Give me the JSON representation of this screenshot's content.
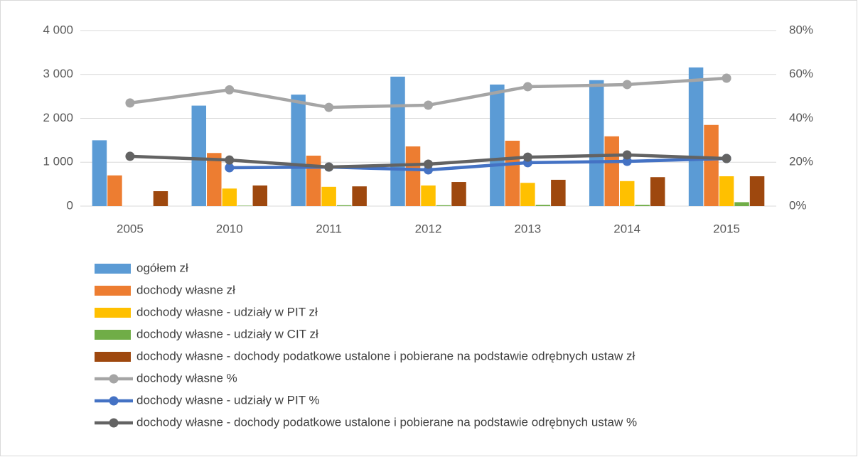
{
  "chart_data": {
    "type": "bar",
    "categories": [
      "2005",
      "2010",
      "2011",
      "2012",
      "2013",
      "2014",
      "2015"
    ],
    "series": [
      {
        "name": "ogółem zł",
        "type": "bar",
        "color": "#5b9bd5",
        "values": [
          1500,
          2290,
          2540,
          2950,
          2770,
          2870,
          3160
        ]
      },
      {
        "name": "dochody własne zł",
        "type": "bar",
        "color": "#ed7d31",
        "values": [
          700,
          1210,
          1150,
          1360,
          1490,
          1590,
          1850
        ]
      },
      {
        "name": "dochody własne - udziały w PIT zł",
        "type": "bar",
        "color": "#ffc000",
        "values": [
          null,
          400,
          440,
          470,
          530,
          570,
          680
        ]
      },
      {
        "name": "dochody własne - udziały w CIT zł",
        "type": "bar",
        "color": "#70ad47",
        "values": [
          null,
          10,
          20,
          20,
          30,
          30,
          90
        ]
      },
      {
        "name": "dochody własne - dochody podatkowe ustalone i pobierane na podstawie odrębnych ustaw zł",
        "type": "bar",
        "color": "#9e480e",
        "values": [
          340,
          470,
          450,
          550,
          600,
          660,
          680
        ]
      },
      {
        "name": "dochody własne %",
        "type": "line",
        "axis": "y2",
        "color": "#a5a5a5",
        "values": [
          47,
          53,
          45,
          46,
          54.4,
          55.4,
          58.3
        ]
      },
      {
        "name": "dochody własne - udziały w PIT %",
        "type": "line",
        "axis": "y2",
        "color": "#4472c4",
        "values": [
          null,
          17.5,
          17.8,
          16.5,
          19.8,
          20.4,
          21.7
        ]
      },
      {
        "name": "dochody własne - dochody podatkowe ustalone i pobierane na podstawie odrębnych ustaw %",
        "type": "line",
        "axis": "y2",
        "color": "#636363",
        "values": [
          22.7,
          21,
          17.8,
          19.1,
          22.3,
          23.3,
          21.7
        ]
      }
    ],
    "ylim": [
      0,
      4000
    ],
    "yticks": [
      0,
      {
        "value": 1000,
        "label": "1 000"
      },
      {
        "value": 2000,
        "label": "2 000"
      },
      {
        "value": 3000,
        "label": "3 000"
      },
      {
        "value": 4000,
        "label": "4 000"
      }
    ],
    "y2lim": [
      0,
      80
    ],
    "y2ticks": [
      {
        "value": 0,
        "label": "0%"
      },
      {
        "value": 20,
        "label": "20%"
      },
      {
        "value": 40,
        "label": "40%"
      },
      {
        "value": 60,
        "label": "60%"
      },
      {
        "value": 80,
        "label": "80%"
      }
    ],
    "grid": true,
    "legend": "bottom"
  }
}
